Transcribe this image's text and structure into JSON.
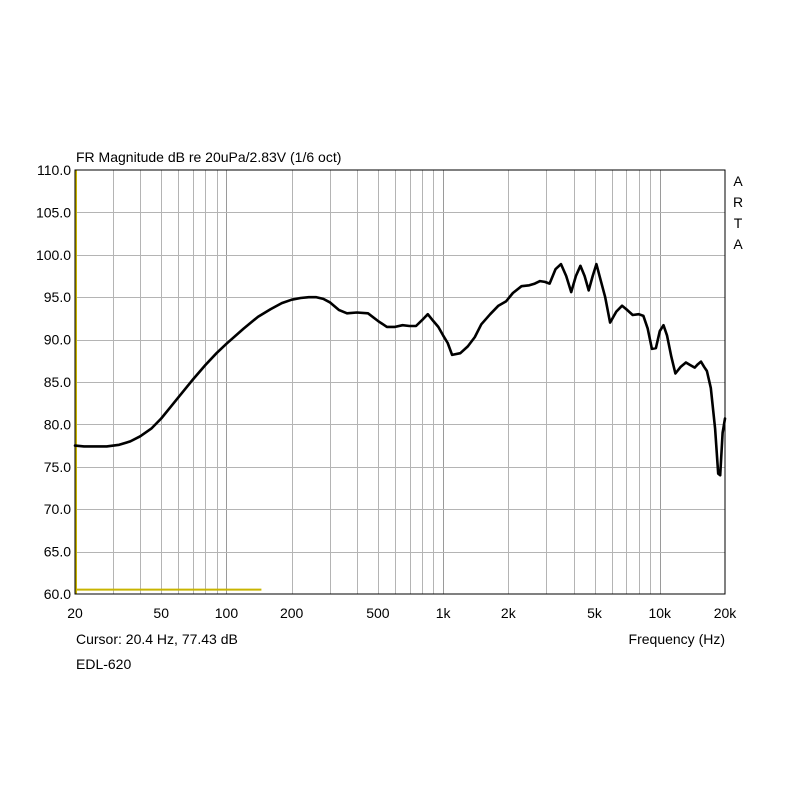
{
  "chart_data": {
    "type": "line",
    "title": "FR Magnitude dB re 20uPa/2.83V (1/6 oct)",
    "xlabel": "Frequency (Hz)",
    "ylabel": "",
    "x_scale": "log",
    "xlim": [
      20,
      20000
    ],
    "ylim": [
      60,
      110
    ],
    "grid": true,
    "x_tick_labels": [
      {
        "value": 20,
        "label": "20"
      },
      {
        "value": 50,
        "label": "50"
      },
      {
        "value": 100,
        "label": "100"
      },
      {
        "value": 200,
        "label": "200"
      },
      {
        "value": 500,
        "label": "500"
      },
      {
        "value": 1000,
        "label": "1k"
      },
      {
        "value": 2000,
        "label": "2k"
      },
      {
        "value": 5000,
        "label": "5k"
      },
      {
        "value": 10000,
        "label": "10k"
      },
      {
        "value": 20000,
        "label": "20k"
      }
    ],
    "y_ticks": [
      {
        "value": 60,
        "label": "60.0"
      },
      {
        "value": 65,
        "label": "65.0"
      },
      {
        "value": 70,
        "label": "70.0"
      },
      {
        "value": 75,
        "label": "75.0"
      },
      {
        "value": 80,
        "label": "80.0"
      },
      {
        "value": 85,
        "label": "85.0"
      },
      {
        "value": 90,
        "label": "90.0"
      },
      {
        "value": 95,
        "label": "95.0"
      },
      {
        "value": 100,
        "label": "100.0"
      },
      {
        "value": 105,
        "label": "105.0"
      },
      {
        "value": 110,
        "label": "110.0"
      }
    ],
    "watermark": [
      "A",
      "R",
      "T",
      "A"
    ],
    "cursor_text": "Cursor: 20.4 Hz, 77.43 dB",
    "cursor_color": "#c8b400",
    "cursor_marker": {
      "x": [
        20,
        145
      ],
      "y": 60.4
    },
    "device_label": "EDL-620",
    "series": [
      {
        "color": "#000000",
        "x": [
          20,
          22,
          25,
          28,
          32,
          36,
          40,
          45,
          50,
          55,
          60,
          70,
          80,
          90,
          100,
          120,
          140,
          160,
          180,
          200,
          220,
          240,
          260,
          280,
          300,
          330,
          360,
          400,
          450,
          500,
          550,
          600,
          650,
          700,
          750,
          800,
          850,
          900,
          950,
          1000,
          1050,
          1100,
          1200,
          1300,
          1400,
          1500,
          1650,
          1800,
          1950,
          2100,
          2300,
          2500,
          2650,
          2800,
          2950,
          3100,
          3300,
          3500,
          3700,
          3900,
          4100,
          4300,
          4500,
          4700,
          4900,
          5100,
          5300,
          5600,
          5900,
          6300,
          6700,
          7000,
          7500,
          8000,
          8400,
          8800,
          9200,
          9600,
          10000,
          10400,
          10800,
          11300,
          11800,
          12500,
          13200,
          13800,
          14500,
          15000,
          15500,
          16000,
          16500,
          17200,
          18000,
          18600,
          19000,
          19500,
          20000
        ],
        "y": [
          77.5,
          77.4,
          77.4,
          77.4,
          77.6,
          78.0,
          78.6,
          79.5,
          80.7,
          82.0,
          83.2,
          85.3,
          87.0,
          88.4,
          89.5,
          91.3,
          92.7,
          93.6,
          94.3,
          94.7,
          94.9,
          95.0,
          95.0,
          94.8,
          94.4,
          93.5,
          93.1,
          93.2,
          93.1,
          92.2,
          91.5,
          91.5,
          91.7,
          91.6,
          91.6,
          92.3,
          93.0,
          92.2,
          91.5,
          90.5,
          89.6,
          88.2,
          88.4,
          89.2,
          90.3,
          91.8,
          93.0,
          94.0,
          94.5,
          95.5,
          96.3,
          96.4,
          96.6,
          96.9,
          96.8,
          96.6,
          98.3,
          98.9,
          97.5,
          95.6,
          97.5,
          98.7,
          97.5,
          95.8,
          97.5,
          98.9,
          97.3,
          95.0,
          92.0,
          93.3,
          94.0,
          93.6,
          92.9,
          93.0,
          92.8,
          91.3,
          88.9,
          89.0,
          91.0,
          91.7,
          90.5,
          88.0,
          86.0,
          86.8,
          87.3,
          87.0,
          86.7,
          87.1,
          87.4,
          86.8,
          86.3,
          84.3,
          79.5,
          74.2,
          74.0,
          79.0,
          80.7
        ]
      }
    ]
  }
}
